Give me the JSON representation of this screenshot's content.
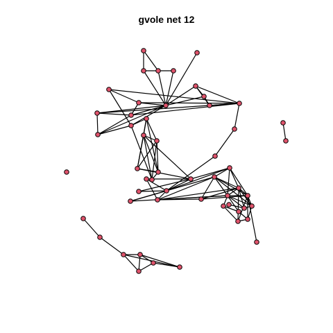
{
  "title": "gvole net 12",
  "node_fill": "#df536b",
  "edge_color": "#000000",
  "nodes": [
    "n1",
    "n2",
    "n3",
    "n4",
    "n5",
    "n6",
    "n7",
    "n8",
    "n9",
    "n10",
    "n11",
    "n12",
    "n13",
    "n14",
    "n15",
    "n16",
    "n17",
    "n18",
    "n19",
    "n20",
    "n21",
    "n22",
    "n23",
    "n24",
    "n25",
    "n26",
    "n27",
    "n28",
    "n29",
    "n30",
    "n31",
    "n32",
    "n33",
    "n34",
    "n35",
    "n36",
    "n37",
    "n38",
    "n39",
    "n40",
    "n41",
    "n42",
    "n43",
    "n44",
    "n45",
    "n46",
    "n47",
    "n48",
    "n49",
    "n50",
    "n51",
    "n52",
    "n53",
    "n54"
  ],
  "edges": [
    [
      "n1",
      "n2"
    ],
    [
      "n1",
      "n3"
    ],
    [
      "n2",
      "n3"
    ],
    [
      "n3",
      "n4"
    ],
    [
      "n2",
      "n6"
    ],
    [
      "n3",
      "n6"
    ],
    [
      "n4",
      "n6"
    ],
    [
      "n5",
      "n6"
    ],
    [
      "n7",
      "n8"
    ],
    [
      "n7",
      "n9"
    ],
    [
      "n7",
      "n10"
    ],
    [
      "n7",
      "n6"
    ],
    [
      "n8",
      "n6"
    ],
    [
      "n8",
      "n9"
    ],
    [
      "n9",
      "n10"
    ],
    [
      "n10",
      "n11"
    ],
    [
      "n11",
      "n12"
    ],
    [
      "n13",
      "n10"
    ],
    [
      "n14",
      "n10"
    ],
    [
      "n13",
      "n15"
    ],
    [
      "n14",
      "n16"
    ],
    [
      "n15",
      "n10"
    ],
    [
      "n15",
      "n16"
    ],
    [
      "n16",
      "n10"
    ],
    [
      "n15",
      "n6"
    ],
    [
      "n14",
      "n6"
    ],
    [
      "n16",
      "n6"
    ],
    [
      "n17",
      "n14"
    ],
    [
      "n17",
      "n6"
    ],
    [
      "n16",
      "n17"
    ],
    [
      "n18",
      "n17"
    ],
    [
      "n18",
      "n6"
    ],
    [
      "n18",
      "n13"
    ],
    [
      "n19",
      "n18"
    ],
    [
      "n19",
      "n20"
    ],
    [
      "n21",
      "n19"
    ],
    [
      "n21",
      "n20"
    ],
    [
      "n21",
      "n22"
    ],
    [
      "n19",
      "n22"
    ],
    [
      "n20",
      "n22"
    ],
    [
      "n19",
      "n23"
    ],
    [
      "n20",
      "n23"
    ],
    [
      "n21",
      "n23"
    ],
    [
      "n22",
      "n23"
    ],
    [
      "n20",
      "n24"
    ],
    [
      "n23",
      "n24"
    ],
    [
      "n21",
      "n24"
    ],
    [
      "n18",
      "n24"
    ],
    [
      "n20",
      "n26"
    ],
    [
      "n22",
      "n26"
    ],
    [
      "n26",
      "n25"
    ],
    [
      "n26",
      "n27"
    ],
    [
      "n26",
      "n28"
    ],
    [
      "n26",
      "n33"
    ],
    [
      "n25",
      "n28"
    ],
    [
      "n27",
      "n28"
    ],
    [
      "n27",
      "n30"
    ],
    [
      "n28",
      "n29"
    ],
    [
      "n28",
      "n30"
    ],
    [
      "n28",
      "n33"
    ],
    [
      "n12",
      "n28"
    ],
    [
      "n29",
      "n34"
    ],
    [
      "n29",
      "n32"
    ],
    [
      "n30",
      "n31"
    ],
    [
      "n30",
      "n32"
    ],
    [
      "n30",
      "n34"
    ],
    [
      "n30",
      "n35"
    ],
    [
      "n31",
      "n32"
    ],
    [
      "n31",
      "n35"
    ],
    [
      "n31",
      "n36"
    ],
    [
      "n32",
      "n33"
    ],
    [
      "n32",
      "n34"
    ],
    [
      "n32",
      "n35"
    ],
    [
      "n32",
      "n36"
    ],
    [
      "n32",
      "n37"
    ],
    [
      "n33",
      "n34"
    ],
    [
      "n33",
      "n35"
    ],
    [
      "n33",
      "n36"
    ],
    [
      "n34",
      "n35"
    ],
    [
      "n34",
      "n37"
    ],
    [
      "n34",
      "n36"
    ],
    [
      "n35",
      "n36"
    ],
    [
      "n35",
      "n37"
    ],
    [
      "n36",
      "n37"
    ],
    [
      "n34",
      "n38"
    ],
    [
      "n41",
      "n42"
    ],
    [
      "n42",
      "n44"
    ],
    [
      "n44",
      "n45"
    ],
    [
      "n44",
      "n46"
    ],
    [
      "n45",
      "n46"
    ],
    [
      "n45",
      "n47"
    ],
    [
      "n46",
      "n47"
    ],
    [
      "n47",
      "n48"
    ],
    [
      "n44",
      "n48"
    ],
    [
      "n45",
      "n48"
    ],
    [
      "n49",
      "n50"
    ]
  ]
}
